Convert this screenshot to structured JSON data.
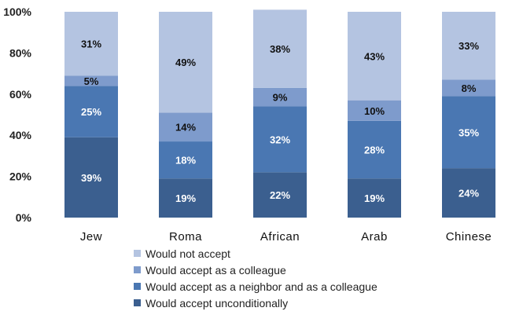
{
  "chart_data": {
    "type": "bar",
    "stacked": true,
    "categories": [
      "Jew",
      "Roma",
      "African",
      "Arab",
      "Chinese"
    ],
    "series": [
      {
        "name": "Would accept unconditionally",
        "color": "#3b5f8f",
        "label_color": "#ffffff",
        "values": [
          39,
          19,
          22,
          19,
          24
        ]
      },
      {
        "name": "Would accept as a neighbor and as a colleague",
        "color": "#4a77b2",
        "label_color": "#ffffff",
        "values": [
          25,
          18,
          32,
          28,
          35
        ]
      },
      {
        "name": "Would accept as a colleague",
        "color": "#7e9bcc",
        "label_color": "#111111",
        "values": [
          5,
          14,
          9,
          10,
          8
        ]
      },
      {
        "name": "Would not accept",
        "color": "#b4c4e1",
        "label_color": "#111111",
        "values": [
          31,
          49,
          38,
          43,
          33
        ]
      }
    ],
    "value_suffix": "%",
    "y_ticks": [
      "0%",
      "20%",
      "40%",
      "60%",
      "80%",
      "100%"
    ],
    "ylim": [
      0,
      100
    ],
    "legend_position": "bottom",
    "grid": false
  }
}
